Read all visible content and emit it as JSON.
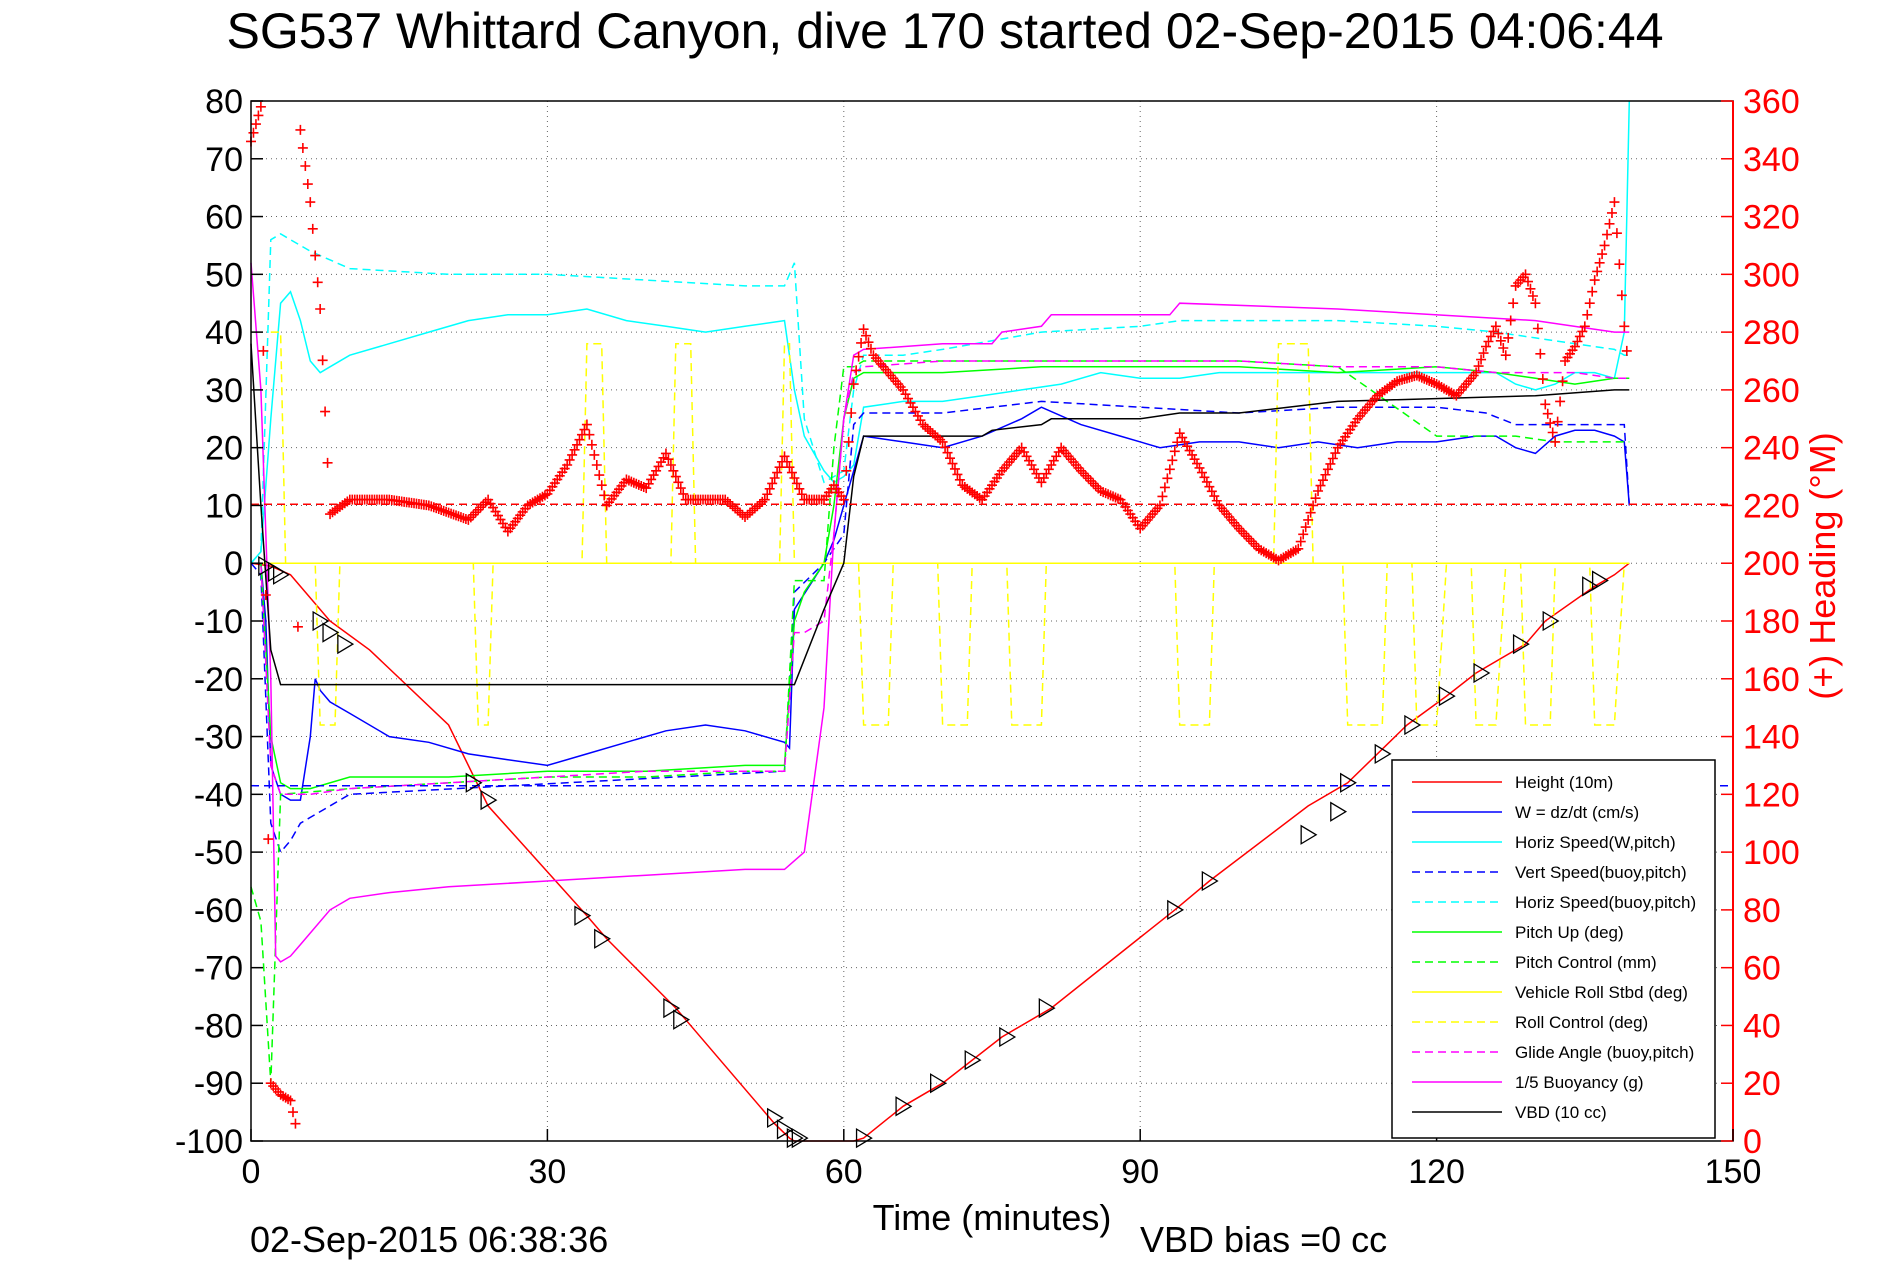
{
  "chart_data": {
    "type": "line",
    "title": "SG537 Whittard Canyon, dive 170 started 02-Sep-2015 04:06:44",
    "xlabel": "Time (minutes)",
    "ylabel": "",
    "y2label": "(+) Heading (°M)",
    "xlim": [
      0,
      150
    ],
    "ylim": [
      -100,
      80
    ],
    "y2lim": [
      0,
      360
    ],
    "xticks": [
      "0",
      "30",
      "60",
      "90",
      "120",
      "150"
    ],
    "yticks": [
      "80",
      "70",
      "60",
      "50",
      "40",
      "30",
      "20",
      "10",
      "0",
      "-10",
      "-20",
      "-30",
      "-40",
      "-50",
      "-60",
      "-70",
      "-80",
      "-90",
      "-100"
    ],
    "y2ticks": [
      "360",
      "340",
      "320",
      "300",
      "280",
      "260",
      "240",
      "220",
      "200",
      "180",
      "160",
      "140",
      "120",
      "100",
      "80",
      "60",
      "40",
      "20",
      "0"
    ],
    "grid": true,
    "legend_position": "bottom-right",
    "footer_left": "02-Sep-2015 06:38:36",
    "footer_right": "VBD bias =0 cc",
    "colors": {
      "red": "#ff0000",
      "blue": "#0000ff",
      "cyan": "#00ffff",
      "green": "#00ff00",
      "yellow": "#ffff00",
      "magenta": "#ff00ff",
      "black": "#000000"
    },
    "series": [
      {
        "name": "Height (10m)",
        "color": "#ff0000",
        "dash": false,
        "x": [
          0,
          2,
          4,
          8,
          12,
          20,
          24,
          34,
          36,
          43,
          44,
          53,
          54.5,
          55,
          56,
          60,
          61,
          62,
          66,
          70,
          76,
          81,
          93.5,
          97,
          107,
          111,
          117,
          121,
          124,
          129,
          131,
          136,
          138,
          139.5
        ],
        "y": [
          0,
          -0.5,
          -2,
          -10,
          -15,
          -28,
          -42,
          -61,
          -65,
          -77,
          -79,
          -97,
          -99.5,
          -100,
          -100,
          -100,
          -100,
          -99.5,
          -94,
          -90,
          -82,
          -77,
          -60,
          -55,
          -42,
          -38,
          -28,
          -23,
          -19,
          -14,
          -10,
          -4,
          -2,
          0
        ]
      },
      {
        "name": "W = dz/dt (cm/s)",
        "color": "#0000ff",
        "dash": false,
        "x": [
          0,
          1,
          1.5,
          2,
          3,
          4,
          5,
          6,
          6.5,
          7,
          8,
          10,
          14,
          18,
          22,
          26,
          30,
          34,
          38,
          42,
          46,
          50,
          54,
          54.5,
          55,
          58,
          59,
          60,
          61,
          62,
          66,
          70,
          74,
          78,
          80,
          84,
          88,
          92,
          96,
          100,
          104,
          108,
          112,
          116,
          120,
          124,
          126,
          128,
          130,
          132,
          134,
          136,
          138,
          139,
          139.5
        ],
        "y": [
          0,
          0,
          -10,
          -35,
          -40,
          -41,
          -41,
          -30,
          -20,
          -22,
          -24,
          -26,
          -30,
          -31,
          -33,
          -34,
          -35,
          -33,
          -31,
          -29,
          -28,
          -29,
          -31,
          -32,
          -8,
          0,
          4,
          10,
          16,
          22,
          21,
          20,
          22,
          25,
          27,
          24,
          22,
          20,
          21,
          21,
          20,
          21,
          20,
          21,
          21,
          22,
          22,
          20,
          19,
          22,
          23,
          23,
          22,
          21,
          10
        ]
      },
      {
        "name": "Horiz Speed(W,pitch)",
        "color": "#00ffff",
        "dash": false,
        "x": [
          0,
          1,
          2,
          3,
          4,
          5,
          6,
          7,
          8,
          10,
          14,
          18,
          22,
          26,
          30,
          34,
          38,
          42,
          46,
          50,
          54,
          55,
          56,
          58,
          59,
          60,
          61,
          62,
          66,
          70,
          74,
          78,
          82,
          86,
          90,
          94,
          98,
          102,
          106,
          110,
          114,
          118,
          122,
          126,
          128,
          130,
          132,
          134,
          136,
          138,
          139,
          139.5
        ],
        "y": [
          0,
          2,
          25,
          45,
          47,
          42,
          35,
          33,
          34,
          36,
          38,
          40,
          42,
          43,
          43,
          44,
          42,
          41,
          40,
          41,
          42,
          30,
          22,
          16,
          14,
          15,
          17,
          27,
          28,
          28,
          29,
          30,
          31,
          33,
          32,
          32,
          33,
          33,
          33,
          33,
          33,
          33,
          33,
          33,
          31,
          30,
          31,
          33,
          33,
          32,
          40,
          80
        ]
      },
      {
        "name": "Vert Speed(buoy,pitch)",
        "color": "#0000ff",
        "dash": true,
        "x": [
          0,
          1,
          2,
          3,
          4,
          5,
          6,
          8,
          10,
          54,
          55,
          58,
          60,
          61,
          62,
          70,
          80,
          90,
          100,
          110,
          120,
          125,
          128,
          130,
          133,
          136,
          138,
          139,
          139.5
        ],
        "y": [
          0,
          -2,
          -45,
          -50,
          -48,
          -45,
          -44,
          -42,
          -40,
          -36,
          -5,
          0,
          5,
          24,
          26,
          26,
          28,
          27,
          26,
          27,
          27,
          26,
          24,
          24,
          24,
          24,
          24,
          24,
          10
        ]
      },
      {
        "name": "Horiz Speed(buoy,pitch)",
        "color": "#00ffff",
        "dash": true,
        "x": [
          0,
          1,
          2,
          3,
          4,
          6,
          10,
          20,
          30,
          40,
          50,
          54,
          55,
          56,
          58,
          60,
          61,
          62,
          66,
          70,
          80,
          90,
          94,
          100,
          110,
          120,
          126,
          130,
          134,
          138,
          139,
          139.5
        ],
        "y": [
          0,
          2,
          56,
          57,
          56,
          54,
          51,
          50,
          50,
          49,
          48,
          48,
          52,
          25,
          14,
          16,
          30,
          36,
          36,
          37,
          40,
          41,
          42,
          42,
          42,
          41,
          40,
          39,
          38,
          37,
          36,
          36
        ]
      },
      {
        "name": "Pitch Up (deg)",
        "color": "#00ff00",
        "dash": false,
        "x": [
          0,
          1,
          2,
          3,
          4,
          6,
          10,
          20,
          30,
          40,
          50,
          54,
          55,
          56,
          58,
          59,
          60,
          61,
          62,
          70,
          80,
          90,
          100,
          110,
          120,
          126,
          130,
          134,
          138,
          139.5
        ],
        "y": [
          0,
          0,
          -30,
          -38,
          -39,
          -39,
          -37,
          -37,
          -36,
          -36,
          -35,
          -35,
          -10,
          -5,
          0,
          10,
          25,
          32,
          33,
          33,
          34,
          34,
          34,
          33,
          34,
          33,
          32,
          31,
          32,
          32
        ]
      },
      {
        "name": "Pitch Control (mm)",
        "color": "#00ff00",
        "dash": true,
        "x": [
          0,
          1,
          2,
          3,
          10,
          20,
          30,
          40,
          50,
          54,
          55,
          56,
          58,
          59,
          60,
          61,
          62,
          70,
          80,
          90,
          100,
          110,
          120,
          126,
          128,
          132,
          136,
          139,
          139.5
        ],
        "y": [
          -56,
          -62,
          -90,
          -40,
          -39,
          -38,
          -37,
          -37,
          -36,
          -36,
          -3,
          -3,
          -3,
          20,
          34,
          34,
          35,
          35,
          35,
          35,
          35,
          34,
          22,
          22,
          22,
          21,
          21,
          21,
          21
        ]
      },
      {
        "name": "Vehicle Roll Stbd (deg)",
        "color": "#ffff00",
        "dash": false,
        "x": [
          0,
          2,
          4,
          6,
          10,
          20,
          30,
          40,
          50,
          60,
          70,
          80,
          90,
          100,
          110,
          120,
          130,
          139.5
        ],
        "y": [
          0,
          0,
          0,
          0,
          0,
          0,
          0,
          0,
          0,
          0,
          0,
          0,
          0,
          0,
          0,
          0,
          0,
          0
        ]
      },
      {
        "name": "Roll Control (deg)",
        "color": "#ffff00",
        "dash": true,
        "x": [
          2,
          3,
          3.5,
          6.5,
          7,
          8.5,
          9,
          22.5,
          23,
          24,
          24.5,
          33.5,
          34,
          35.5,
          36,
          42.5,
          43,
          44.5,
          45,
          53.5,
          54,
          54.5,
          55,
          61.5,
          62,
          64.5,
          65,
          69.5,
          70,
          72.5,
          73,
          76.5,
          77,
          80,
          80.5,
          93.5,
          94,
          97,
          97.5,
          103.5,
          104,
          107,
          107.5,
          110.5,
          111,
          114.5,
          115,
          117.5,
          118,
          120,
          121,
          123.5,
          124,
          126,
          127,
          128.5,
          129,
          131.5,
          132,
          135.5,
          136,
          138,
          139
        ],
        "y": [
          40,
          40,
          0,
          0,
          -28,
          -28,
          0,
          0,
          -28,
          -28,
          0,
          0,
          38,
          38,
          0,
          0,
          38,
          38,
          0,
          0,
          38,
          38,
          0,
          0,
          -28,
          -28,
          0,
          0,
          -28,
          -28,
          0,
          0,
          -28,
          -28,
          0,
          0,
          -28,
          -28,
          0,
          0,
          38,
          38,
          0,
          0,
          -28,
          -28,
          0,
          0,
          -28,
          -28,
          0,
          0,
          -28,
          -28,
          0,
          0,
          -28,
          -28,
          0,
          0,
          -28,
          -28,
          0
        ]
      },
      {
        "name": "Glide Angle (buoy,pitch)",
        "color": "#ff00ff",
        "dash": true,
        "x": [
          0,
          1,
          2,
          3,
          4,
          6,
          10,
          20,
          30,
          40,
          50,
          54,
          55,
          56,
          58,
          59,
          60,
          61,
          62,
          70,
          80,
          90,
          100,
          110,
          120,
          126,
          130,
          134,
          138,
          139.5
        ],
        "y": [
          0,
          0,
          -35,
          -40,
          -40,
          -40,
          -39,
          -38,
          -37,
          -36,
          -36,
          -36,
          -12,
          -12,
          -10,
          5,
          25,
          33,
          34,
          35,
          35,
          35,
          35,
          34,
          34,
          33,
          33,
          33,
          32,
          32
        ]
      },
      {
        "name": "1/5 Buoyancy (g)",
        "color": "#ff00ff",
        "dash": false,
        "x": [
          0,
          1,
          2,
          2.5,
          3,
          4,
          5,
          6,
          8,
          10,
          14,
          20,
          30,
          40,
          50,
          54,
          56,
          58,
          59,
          60,
          61,
          62,
          70,
          75,
          76,
          80,
          81,
          93,
          94,
          110,
          130,
          138,
          139,
          139.5
        ],
        "y": [
          52,
          30,
          -20,
          -68,
          -69,
          -68,
          -66,
          -64,
          -60,
          -58,
          -57,
          -56,
          -55,
          -54,
          -53,
          -53,
          -50,
          -25,
          5,
          25,
          36,
          37,
          38,
          38,
          40,
          41,
          43,
          43,
          45,
          44,
          42,
          40,
          40,
          40
        ]
      },
      {
        "name": "VBD (10 cc)",
        "color": "#000000",
        "dash": false,
        "x": [
          0,
          1,
          2,
          3,
          4,
          10,
          20,
          30,
          40,
          50,
          54.5,
          55,
          58,
          60,
          61,
          62,
          66,
          70,
          74,
          75,
          80,
          81,
          90,
          94,
          100,
          110,
          130,
          138,
          139.5
        ],
        "y": [
          38,
          10,
          -15,
          -21,
          -21,
          -21,
          -21,
          -21,
          -21,
          -21,
          -21,
          -21,
          -8,
          0,
          15,
          22,
          22,
          22,
          22,
          23,
          24,
          25,
          25,
          26,
          26,
          28,
          29,
          30,
          30
        ]
      },
      {
        "name": "",
        "color": "#ff0000",
        "dash": true,
        "kind": "hline",
        "x": [
          0,
          150
        ],
        "y": [
          10.2,
          10.2
        ]
      },
      {
        "name": "",
        "color": "#0000ff",
        "dash": true,
        "kind": "hline",
        "x": [
          0,
          150
        ],
        "y": [
          -38.5,
          -38.5
        ]
      }
    ],
    "heading": {
      "name": "(+) Heading",
      "color": "#ff0000",
      "x": [
        0,
        1,
        2,
        3,
        4,
        4.5,
        5,
        6,
        7,
        8,
        10,
        14,
        18,
        22,
        24,
        26,
        28,
        30,
        32,
        34,
        36,
        38,
        40,
        42,
        44,
        46,
        48,
        50,
        52,
        54,
        56,
        58,
        59,
        60,
        61,
        62,
        63,
        64,
        66,
        68,
        70,
        72,
        74,
        76,
        78,
        80,
        82,
        84,
        86,
        88,
        90,
        92,
        94,
        96,
        98,
        100,
        102,
        104,
        106,
        108,
        110,
        112,
        114,
        116,
        118,
        120,
        122,
        124,
        125,
        126,
        127,
        128,
        129,
        130,
        131,
        132,
        133,
        134,
        135,
        136,
        137,
        138,
        139,
        139.5
      ],
      "y": [
        346,
        358,
        20,
        16,
        14,
        6,
        350,
        325,
        288,
        217,
        222,
        222,
        220,
        215,
        222,
        211,
        220,
        224,
        234,
        248,
        220,
        229,
        226,
        238,
        222,
        222,
        222,
        216,
        222,
        237,
        222,
        222,
        227,
        222,
        262,
        281,
        272,
        268,
        260,
        248,
        242,
        227,
        222,
        232,
        240,
        228,
        240,
        232,
        225,
        222,
        212,
        220,
        245,
        233,
        220,
        212,
        205,
        201,
        205,
        225,
        240,
        250,
        258,
        263,
        265,
        262,
        258,
        266,
        275,
        282,
        272,
        296,
        300,
        290,
        255,
        242,
        270,
        275,
        282,
        298,
        310,
        325,
        282,
        265
      ]
    },
    "markers": {
      "symbol": "triangle-right",
      "x": [
        1.5,
        2.5,
        3,
        7,
        8,
        9.5,
        22.5,
        24,
        33.5,
        35.5,
        42.5,
        43.5,
        53,
        54,
        55,
        55.5,
        62,
        66,
        69.5,
        73,
        76.5,
        80.5,
        93.5,
        97,
        107,
        110,
        111,
        114.5,
        117.5,
        121,
        124.5,
        128.5,
        131.5,
        135.5,
        136.5
      ],
      "y": [
        -0.5,
        -1.5,
        -2,
        -10,
        -12,
        -14,
        -38,
        -41,
        -61,
        -65,
        -77,
        -79,
        -96,
        -98,
        -99.5,
        -99.5,
        -99.5,
        -94,
        -90,
        -86,
        -82,
        -77,
        -60,
        -55,
        -47,
        -43,
        -38,
        -33,
        -28,
        -23,
        -19,
        -14,
        -10,
        -4,
        -3
      ]
    }
  }
}
